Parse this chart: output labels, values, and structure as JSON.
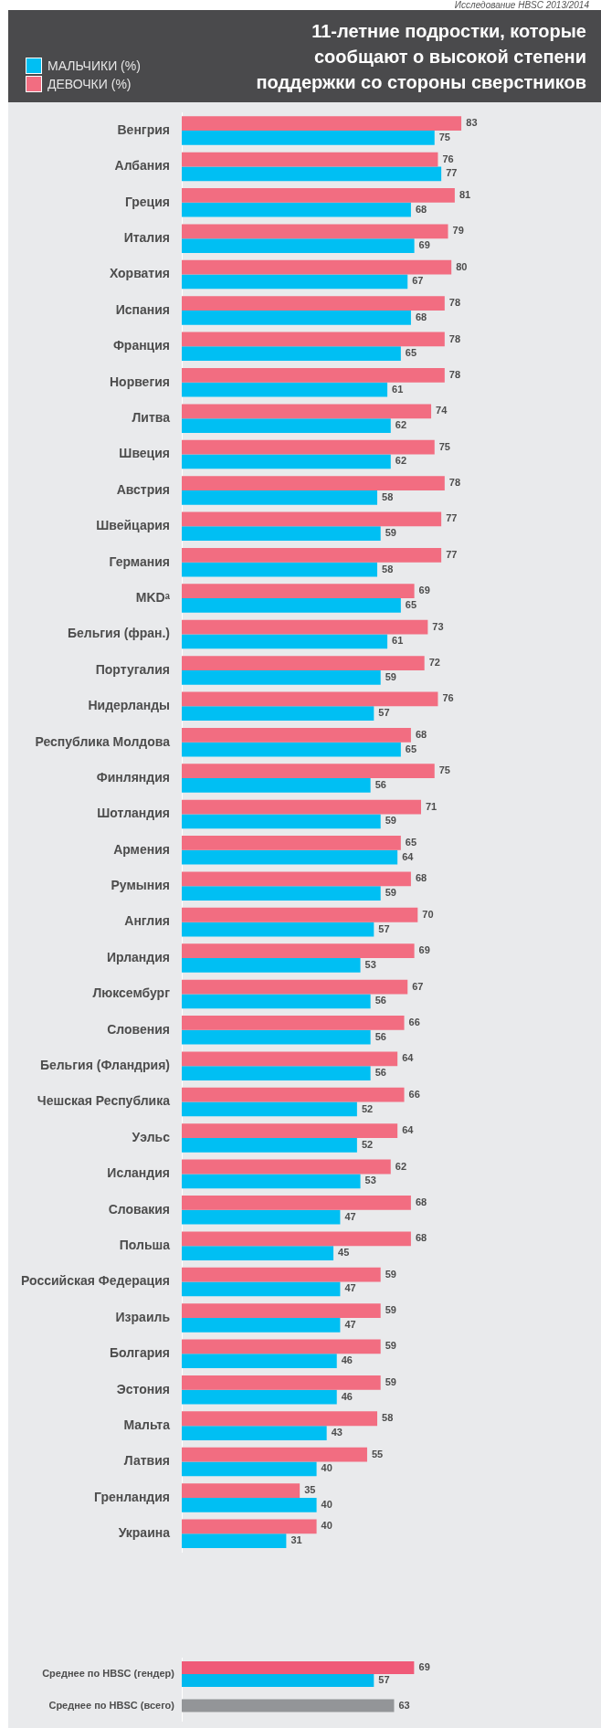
{
  "chart_data": [
    {
      "type": "bar",
      "orientation": "horizontal",
      "title": "11-летние подростки, которые сообщают о высокой степени поддержки со стороны сверстников",
      "annotations": [
        "Исследование HBSC 2013/2014"
      ],
      "legend": "top left",
      "tick_labels": "y",
      "data_labels": true,
      "categories": [
        "Венгрия",
        "Албания",
        "Греция",
        "Италия",
        "Хорватия",
        "Испания",
        "Франция",
        "Норвегия",
        "Литва",
        "Швеция",
        "Австрия",
        "Швейцария",
        "Германия",
        "MKDᵃ",
        "Бельгия (фран.)",
        "Португалия",
        "Нидерланды",
        "Республика Молдова",
        "Финляндия",
        "Шотландия",
        "Армения",
        "Румыния",
        "Англия",
        "Ирландия",
        "Люксембург",
        "Словения",
        "Бельгия (Фландрия)",
        "Чешская Республика",
        "Уэльс",
        "Исландия",
        "Словакия",
        "Польша",
        "Российская Федерация",
        "Израиль",
        "Болгария",
        "Эстония",
        "Мальта",
        "Латвия",
        "Гренландия",
        "Украина"
      ],
      "series": [
        {
          "name": "ДЕВОЧКИ (%)",
          "color": "#f26d81",
          "values": [
            83,
            76,
            81,
            79,
            80,
            78,
            78,
            78,
            74,
            75,
            78,
            77,
            77,
            69,
            73,
            72,
            76,
            68,
            75,
            71,
            65,
            68,
            70,
            69,
            67,
            66,
            64,
            66,
            64,
            62,
            68,
            68,
            59,
            59,
            59,
            59,
            58,
            55,
            35,
            40
          ]
        },
        {
          "name": "МАЛЬЧИКИ (%)",
          "color": "#00bff3",
          "values": [
            75,
            77,
            68,
            69,
            67,
            68,
            65,
            61,
            62,
            62,
            58,
            59,
            58,
            65,
            61,
            59,
            57,
            65,
            56,
            59,
            64,
            59,
            57,
            53,
            56,
            56,
            56,
            52,
            52,
            53,
            47,
            45,
            47,
            47,
            46,
            46,
            43,
            40,
            40,
            31
          ]
        }
      ]
    },
    {
      "type": "bar",
      "orientation": "horizontal",
      "tick_labels": "y",
      "data_labels": true,
      "categories": [
        "Среднее по HBSC (гендер)",
        "Среднее по HBSC (всего)"
      ],
      "series": [
        {
          "color": "#f05a78",
          "values": [
            69,
            null
          ]
        },
        {
          "color": "#00b9ef",
          "values": [
            57,
            null
          ]
        },
        {
          "color": "#939598",
          "values": [
            null,
            63
          ]
        }
      ]
    }
  ]
}
